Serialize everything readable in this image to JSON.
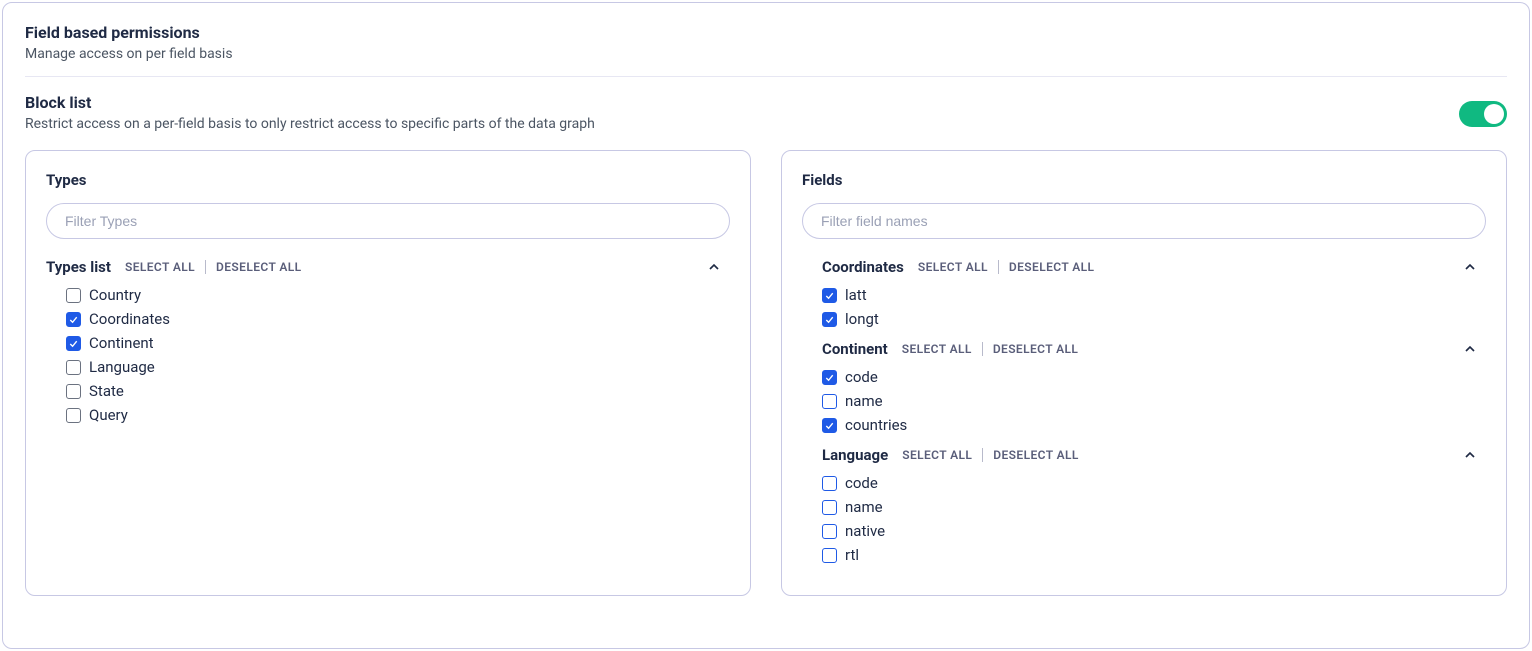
{
  "colors": {
    "border": "#c7c8e4",
    "toggle_on": "#10b981",
    "checkbox_blue": "#1f5ae6",
    "checkbox_gray": "#6b7280",
    "text_primary": "#1f2a44",
    "text_secondary": "#4b5563",
    "link_muted": "#5a5e7a"
  },
  "header": {
    "title": "Field based permissions",
    "description": "Manage access on per field basis"
  },
  "blockList": {
    "title": "Block list",
    "description": "Restrict access on a per-field basis to only restrict access to specific parts of the data graph",
    "enabled": true
  },
  "buttons": {
    "selectAll": "SELECT ALL",
    "deselectAll": "DESELECT ALL"
  },
  "typesPanel": {
    "title": "Types",
    "filterPlaceholder": "Filter Types",
    "groupLabel": "Types list",
    "expanded": true,
    "items": [
      {
        "label": "Country",
        "checked": false
      },
      {
        "label": "Coordinates",
        "checked": true
      },
      {
        "label": "Continent",
        "checked": true
      },
      {
        "label": "Language",
        "checked": false
      },
      {
        "label": "State",
        "checked": false
      },
      {
        "label": "Query",
        "checked": false
      }
    ]
  },
  "fieldsPanel": {
    "title": "Fields",
    "filterPlaceholder": "Filter field names",
    "groups": [
      {
        "name": "Coordinates",
        "expanded": true,
        "items": [
          {
            "label": "latt",
            "checked": true
          },
          {
            "label": "longt",
            "checked": true
          }
        ]
      },
      {
        "name": "Continent",
        "expanded": true,
        "items": [
          {
            "label": "code",
            "checked": true
          },
          {
            "label": "name",
            "checked": false
          },
          {
            "label": "countries",
            "checked": true
          }
        ]
      },
      {
        "name": "Language",
        "expanded": true,
        "items": [
          {
            "label": "code",
            "checked": false
          },
          {
            "label": "name",
            "checked": false
          },
          {
            "label": "native",
            "checked": false
          },
          {
            "label": "rtl",
            "checked": false
          }
        ]
      }
    ]
  }
}
